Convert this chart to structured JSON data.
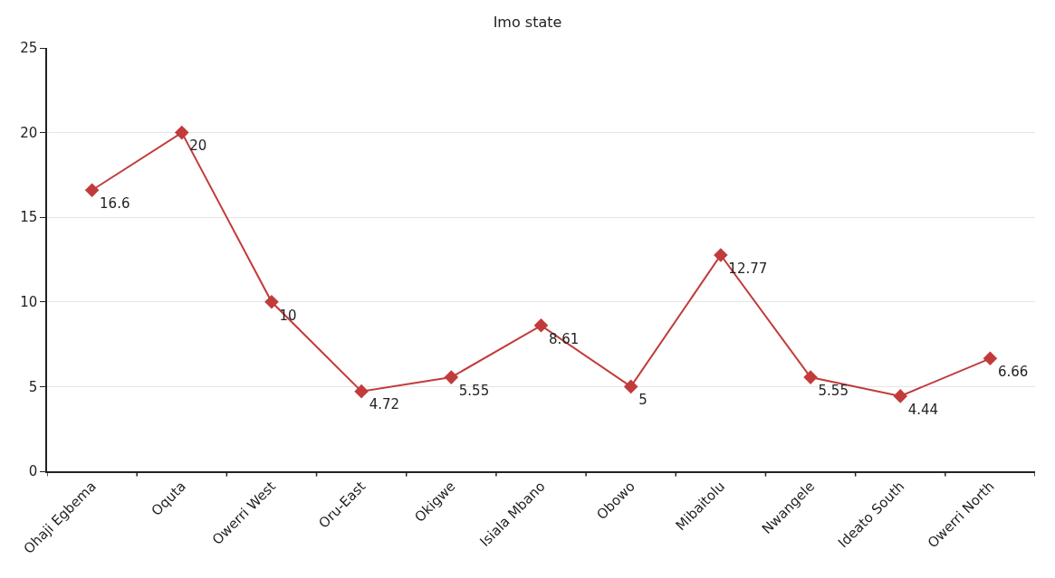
{
  "chart_data": {
    "type": "line",
    "title": "Imo state",
    "categories": [
      "Ohaji Egbema",
      "Oquta",
      "Owerri West",
      "Oru-East",
      "Okigwe",
      "Isiala Mbano",
      "Obowo",
      "Mibaitolu",
      "Nwangele",
      "Ideato South",
      "Owerri North"
    ],
    "series": [
      {
        "color": "#c23b3b",
        "values": [
          16.6,
          20,
          10,
          4.72,
          5.55,
          8.61,
          5,
          12.77,
          5.55,
          4.44,
          6.66
        ]
      }
    ],
    "ylim": [
      0,
      25
    ],
    "yticks": [
      0,
      5,
      10,
      15,
      20,
      25
    ],
    "grid": "y",
    "marker": "diamond",
    "line_style": "solid",
    "data_labels": true
  }
}
